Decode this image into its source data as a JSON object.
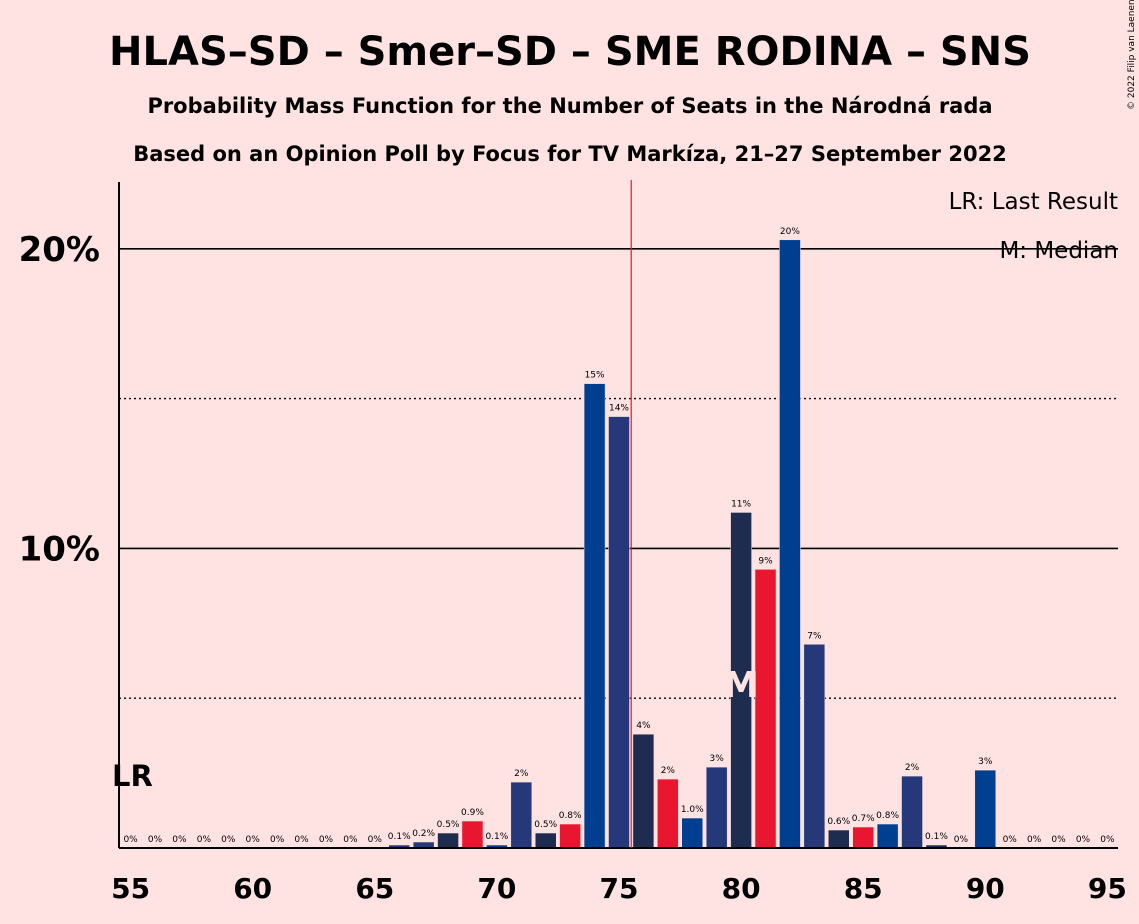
{
  "title": "HLAS–SD – Smer–SD – SME RODINA – SNS",
  "subtitle1": "Probability Mass Function for the Number of Seats in the Národná rada",
  "subtitle2": "Based on an Opinion Poll by Focus for TV Markíza, 21–27 September 2022",
  "copyright": "© 2022 Filip van Laenen",
  "legend": {
    "lr": "LR: Last Result",
    "median": "M: Median"
  },
  "lr_marker": "LR",
  "median_marker": "M",
  "colors": {
    "background": "#ffe2e2",
    "hlas": "#003f8f",
    "smer": "#1e2d4f",
    "sme": "#e8162e",
    "sns": "#25397a",
    "last_result_line": "#e8162e"
  },
  "chart_data": {
    "type": "bar",
    "x": [
      55,
      56,
      57,
      58,
      59,
      60,
      61,
      62,
      63,
      64,
      65,
      66,
      67,
      68,
      69,
      70,
      71,
      72,
      73,
      74,
      75,
      76,
      77,
      78,
      79,
      80,
      81,
      82,
      83,
      84,
      85,
      86,
      87,
      88,
      89,
      90,
      91,
      92,
      93,
      94,
      95
    ],
    "values": [
      0,
      0,
      0,
      0,
      0,
      0,
      0,
      0,
      0,
      0,
      0,
      0.1,
      0.2,
      0.5,
      0.9,
      0.1,
      2.2,
      0.5,
      0.8,
      15.5,
      14.4,
      3.8,
      2.3,
      1.0,
      2.7,
      11.2,
      9.3,
      20.3,
      6.8,
      0.6,
      0.7,
      0.8,
      2.4,
      0.1,
      0,
      2.6,
      0,
      0,
      0,
      0,
      0
    ],
    "labels": [
      "0%",
      "0%",
      "0%",
      "0%",
      "0%",
      "0%",
      "0%",
      "0%",
      "0%",
      "0%",
      "0%",
      "0.1%",
      "0.2%",
      "0.5%",
      "0.9%",
      "0.1%",
      "2%",
      "0.5%",
      "0.8%",
      "15%",
      "14%",
      "4%",
      "2%",
      "1.0%",
      "3%",
      "11%",
      "9%",
      "20%",
      "7%",
      "0.6%",
      "0.7%",
      "0.8%",
      "2%",
      "0.1%",
      "0%",
      "3%",
      "0%",
      "0%",
      "0%",
      "0%",
      "0%"
    ],
    "xticks": [
      "55",
      "60",
      "65",
      "70",
      "75",
      "80",
      "85",
      "90",
      "95"
    ],
    "yticks": [
      "10%",
      "20%"
    ],
    "ylim": [
      0,
      22
    ],
    "last_result": 55,
    "last_result_line_after": 75,
    "median": 80,
    "grid": "solid at 10% and 20%, dotted at 5% and 15%"
  }
}
